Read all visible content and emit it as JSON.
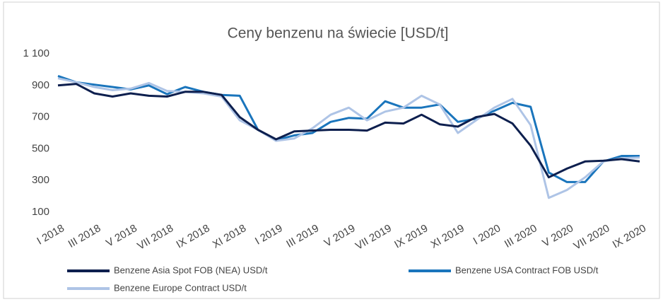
{
  "chart_data": {
    "type": "line",
    "title": "Ceny benzenu na świecie [USD/t]",
    "categories": [
      "I 2018",
      null,
      "III 2018",
      null,
      "V 2018",
      null,
      "VII 2018",
      null,
      "IX 2018",
      null,
      "XI 2018",
      null,
      "I 2019",
      null,
      "III 2019",
      null,
      "V 2019",
      null,
      "VII 2019",
      null,
      "IX 2019",
      null,
      "XI 2019",
      null,
      "I 2020",
      null,
      "III 2020",
      null,
      "V 2020",
      null,
      "VII 2020",
      null,
      "IX 2020"
    ],
    "series": [
      {
        "name": "Benzene Asia Spot FOB (NEA) USD/t",
        "color": "#0d1f4e",
        "values": [
          900,
          910,
          850,
          830,
          850,
          835,
          830,
          860,
          860,
          840,
          700,
          620,
          560,
          610,
          615,
          620,
          620,
          615,
          665,
          660,
          715,
          655,
          640,
          700,
          720,
          660,
          520,
          320,
          375,
          420,
          425,
          435,
          420
        ]
      },
      {
        "name": "Benzene USA Contract FOB USD/t",
        "color": "#1a75bc",
        "values": [
          960,
          920,
          905,
          890,
          875,
          900,
          845,
          890,
          860,
          840,
          835,
          620,
          555,
          585,
          600,
          670,
          695,
          690,
          800,
          760,
          760,
          780,
          670,
          690,
          740,
          790,
          765,
          350,
          290,
          290,
          420,
          455,
          455
        ]
      },
      {
        "name": "Benzene Europe Contract USD/t",
        "color": "#aec4e6",
        "values": [
          945,
          920,
          890,
          870,
          880,
          915,
          865,
          860,
          850,
          830,
          680,
          620,
          550,
          565,
          630,
          715,
          760,
          680,
          735,
          760,
          835,
          780,
          600,
          680,
          760,
          815,
          650,
          190,
          240,
          320,
          420,
          440,
          445
        ]
      }
    ],
    "ylim": [
      100,
      1100
    ],
    "yticks": [
      100,
      300,
      500,
      700,
      900,
      {
        "value": 1100,
        "label": "1 100"
      }
    ],
    "grid": false
  }
}
